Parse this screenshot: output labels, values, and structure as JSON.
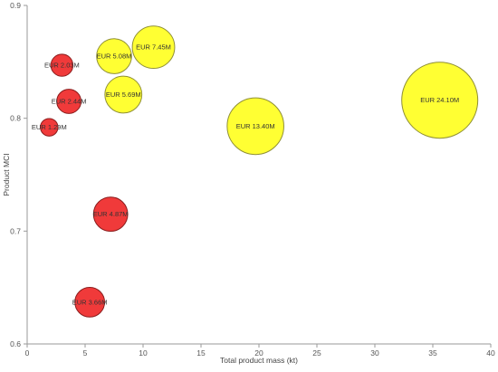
{
  "chart_data": {
    "type": "scatter",
    "subtype": "bubble",
    "title": "",
    "xlabel": "Total product mass (kt)",
    "ylabel": "Product MCI",
    "xlim": [
      0,
      40
    ],
    "ylim": [
      0.6,
      0.9
    ],
    "x_ticks": [
      0,
      5,
      10,
      15,
      20,
      25,
      30,
      35,
      40
    ],
    "y_ticks": [
      0.6,
      0.7,
      0.8,
      0.9
    ],
    "x_tick_labels": [
      "0",
      "5",
      "10",
      "15",
      "20",
      "25",
      "30",
      "35",
      "40"
    ],
    "y_tick_labels": [
      "0.6",
      "0.7",
      "0.8",
      "0.9"
    ],
    "grid": false,
    "legend": "none",
    "colors": {
      "red_fill": "#f03a3a",
      "red_stroke": "#8a1d1d",
      "yellow_fill": "#ffff33",
      "yellow_stroke": "#8f8f35"
    },
    "points": [
      {
        "x": 1.9,
        "y": 0.792,
        "value_eur_m": 1.29,
        "label": "EUR 1.29M",
        "color": "red"
      },
      {
        "x": 3.0,
        "y": 0.847,
        "value_eur_m": 2.03,
        "label": "EUR 2.03M",
        "color": "red"
      },
      {
        "x": 3.6,
        "y": 0.815,
        "value_eur_m": 2.44,
        "label": "EUR 2.44M",
        "color": "red"
      },
      {
        "x": 7.2,
        "y": 0.715,
        "value_eur_m": 4.87,
        "label": "EUR 4.87M",
        "color": "red"
      },
      {
        "x": 5.4,
        "y": 0.637,
        "value_eur_m": 3.66,
        "label": "EUR 3.66M",
        "color": "red"
      },
      {
        "x": 7.5,
        "y": 0.855,
        "value_eur_m": 5.08,
        "label": "EUR 5.08M",
        "color": "yellow"
      },
      {
        "x": 10.9,
        "y": 0.863,
        "value_eur_m": 7.45,
        "label": "EUR 7.45M",
        "color": "yellow"
      },
      {
        "x": 8.3,
        "y": 0.821,
        "value_eur_m": 5.69,
        "label": "EUR 5.69M",
        "color": "yellow"
      },
      {
        "x": 19.7,
        "y": 0.793,
        "value_eur_m": 13.4,
        "label": "EUR 13.40M",
        "color": "yellow"
      },
      {
        "x": 35.6,
        "y": 0.816,
        "value_eur_m": 24.1,
        "label": "EUR 24.10M",
        "color": "yellow"
      }
    ]
  }
}
